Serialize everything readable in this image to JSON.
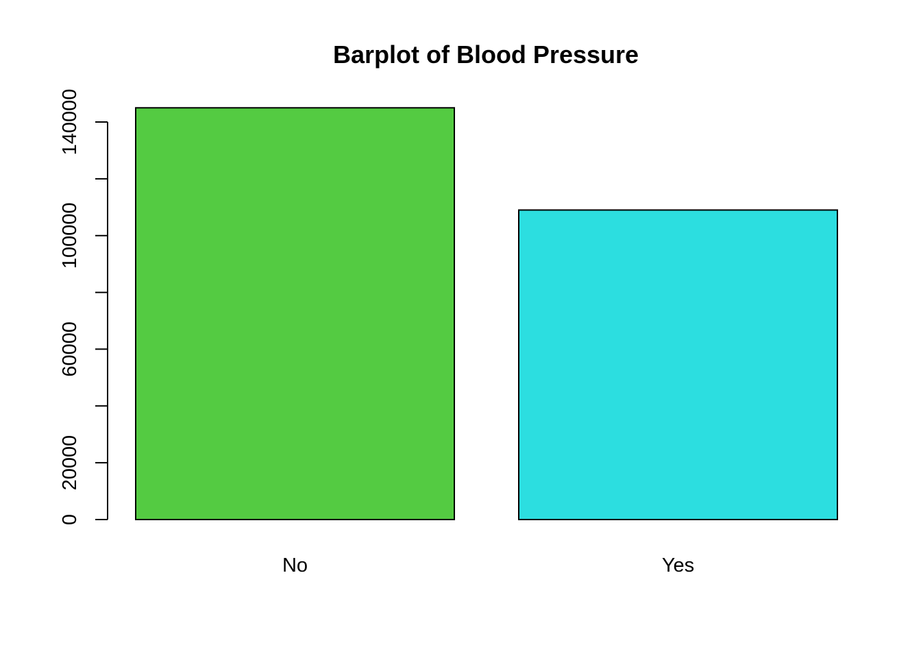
{
  "chart_data": {
    "type": "bar",
    "title": "Barplot of Blood Pressure",
    "xlabel": "",
    "ylabel": "",
    "categories": [
      "No",
      "Yes"
    ],
    "values": [
      145000,
      109000
    ],
    "colors": [
      "#54CB42",
      "#2CDEE0"
    ],
    "ylim": [
      0,
      150000
    ],
    "yticks": [
      0,
      20000,
      40000,
      60000,
      80000,
      100000,
      120000,
      140000
    ],
    "ytick_labels": [
      "0",
      "20000",
      "",
      "60000",
      "",
      "100000",
      "",
      "140000"
    ],
    "grid": false,
    "legend": "none"
  }
}
